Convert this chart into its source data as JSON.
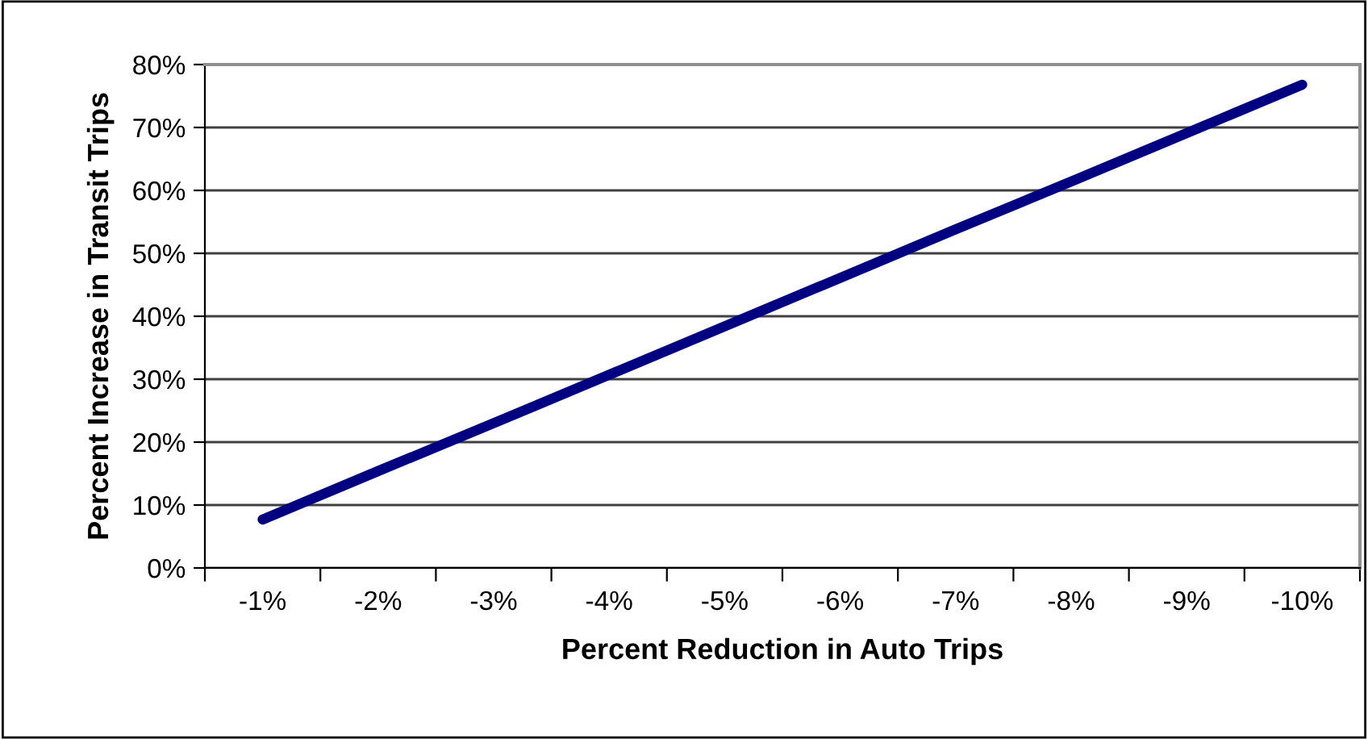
{
  "chart_data": {
    "type": "line",
    "xlabel": "Percent Reduction in Auto Trips",
    "ylabel": "Percent Increase in Transit Trips",
    "categories": [
      "-1%",
      "-2%",
      "-3%",
      "-4%",
      "-5%",
      "-6%",
      "-7%",
      "-8%",
      "-9%",
      "-10%"
    ],
    "series": [
      {
        "color": "#000080",
        "values": [
          0.077,
          0.154,
          0.23,
          0.307,
          0.384,
          0.461,
          0.538,
          0.614,
          0.691,
          0.768
        ]
      }
    ],
    "ylim": [
      0,
      0.8
    ],
    "yticks": [
      {
        "value": 0,
        "label": "0%"
      },
      {
        "value": 0.1,
        "label": "10%"
      },
      {
        "value": 0.2,
        "label": "20%"
      },
      {
        "value": 0.3,
        "label": "30%"
      },
      {
        "value": 0.4,
        "label": "40%"
      },
      {
        "value": 0.5,
        "label": "50%"
      },
      {
        "value": 0.6,
        "label": "60%"
      },
      {
        "value": 0.7,
        "label": "70%"
      },
      {
        "value": 0.8,
        "label": "80%"
      }
    ],
    "grid": "y",
    "legend": false,
    "marker": "none",
    "line_style": "solid"
  }
}
